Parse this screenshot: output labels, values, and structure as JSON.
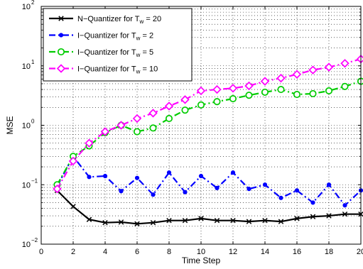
{
  "chart_data": {
    "type": "line",
    "xlabel": "Time Step",
    "ylabel": "MSE",
    "xlim": [
      0,
      20
    ],
    "ylim": [
      0.01,
      100
    ],
    "yscale": "log",
    "grid": true,
    "legend_position": "top-left",
    "x_ticks": [
      "0",
      "2",
      "4",
      "6",
      "8",
      "10",
      "12",
      "14",
      "16",
      "18",
      "20"
    ],
    "y_ticks": [
      {
        "base": "10",
        "exp": "−2",
        "value": 0.01
      },
      {
        "base": "10",
        "exp": "−1",
        "value": 0.1
      },
      {
        "base": "10",
        "exp": "0",
        "value": 1
      },
      {
        "base": "10",
        "exp": "1",
        "value": 10
      },
      {
        "base": "10",
        "exp": "2",
        "value": 100
      }
    ],
    "x": [
      1,
      2,
      3,
      4,
      5,
      6,
      7,
      8,
      9,
      10,
      11,
      12,
      13,
      14,
      15,
      16,
      17,
      18,
      19,
      20
    ],
    "series": [
      {
        "name": "N−Quantizer for T",
        "name_sub": "w",
        "name_tail": " = 20",
        "color": "#000000",
        "linestyle": "solid",
        "marker": "x",
        "values": [
          0.08,
          0.043,
          0.026,
          0.023,
          0.0235,
          0.022,
          0.023,
          0.025,
          0.025,
          0.027,
          0.025,
          0.025,
          0.024,
          0.025,
          0.024,
          0.027,
          0.029,
          0.03,
          0.032,
          0.032
        ]
      },
      {
        "name": "I−Quantizer for T",
        "name_sub": "w",
        "name_tail": " = 2",
        "color": "#0000ff",
        "linestyle": "dashdot",
        "marker": "dot",
        "values": [
          0.095,
          0.3,
          0.135,
          0.14,
          0.078,
          0.13,
          0.068,
          0.16,
          0.075,
          0.14,
          0.088,
          0.16,
          0.085,
          0.1,
          0.06,
          0.08,
          0.05,
          0.1,
          0.045,
          0.08
        ]
      },
      {
        "name": "I−Quantizer for T",
        "name_sub": "w",
        "name_tail": " = 5",
        "color": "#00cc00",
        "linestyle": "dashdot",
        "marker": "circle",
        "values": [
          0.1,
          0.3,
          0.45,
          0.75,
          1.0,
          0.78,
          0.9,
          1.3,
          1.8,
          2.2,
          2.5,
          2.8,
          3.2,
          3.6,
          4.0,
          3.3,
          3.4,
          3.8,
          4.5,
          5.5
        ]
      },
      {
        "name": "I−Quantizer for T",
        "name_sub": "w",
        "name_tail": " = 10",
        "color": "#ff00ff",
        "linestyle": "dashdot",
        "marker": "diamond",
        "values": [
          0.085,
          0.25,
          0.5,
          0.78,
          1.0,
          1.3,
          1.6,
          2.1,
          2.7,
          3.8,
          4.0,
          4.2,
          4.6,
          5.5,
          6.2,
          7.2,
          8.5,
          9.5,
          11,
          13
        ]
      }
    ]
  }
}
